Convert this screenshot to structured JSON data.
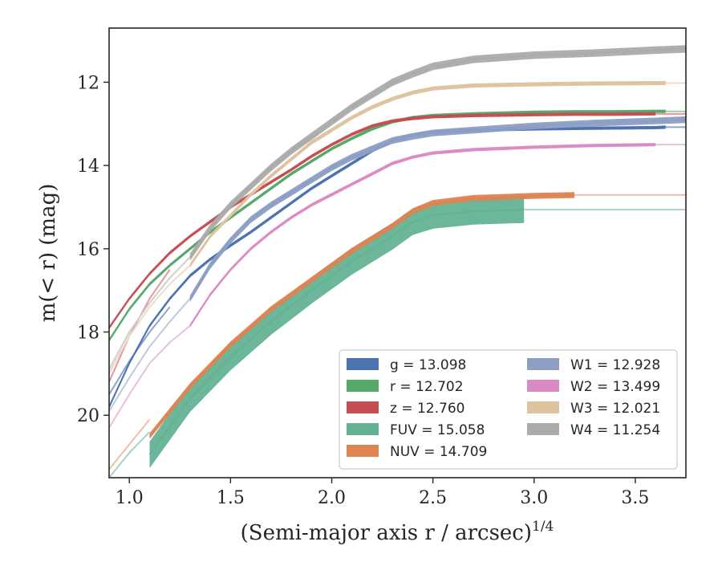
{
  "chart_data": {
    "type": "line",
    "title": "",
    "xlabel": "(Semi-major axis r / arcsec)",
    "xlabel_exponent": "1/4",
    "ylabel": "m(< r) (mag)",
    "xlim": [
      0.9,
      3.75
    ],
    "ylim": [
      21.5,
      10.7
    ],
    "y_inverted": true,
    "xticks": [
      "1.0",
      "1.5",
      "2.0",
      "2.5",
      "3.0",
      "3.5"
    ],
    "yticks": [
      "12",
      "14",
      "16",
      "18",
      "20"
    ],
    "grid": false,
    "legend_position": "lower-right",
    "legend_columns": 2,
    "series": [
      {
        "name": "g = 13.098",
        "color": "#4c72b0",
        "faded_color": "#8ea5c8",
        "x": [
          0.9,
          1.0,
          1.1,
          1.2,
          1.3,
          1.4,
          1.5,
          1.6,
          1.7,
          1.8,
          1.9,
          2.0,
          2.1,
          2.2,
          2.3,
          2.4,
          2.5,
          2.7,
          3.0,
          3.2,
          3.4,
          3.6,
          3.65
        ],
        "y": [
          19.8,
          18.75,
          17.85,
          17.2,
          16.65,
          16.25,
          15.92,
          15.6,
          15.25,
          14.9,
          14.55,
          14.25,
          13.95,
          13.65,
          13.4,
          13.27,
          13.2,
          13.15,
          13.12,
          13.11,
          13.1,
          13.09,
          13.08
        ],
        "band": 0.04,
        "fade_from": 3.65
      },
      {
        "name": "r = 12.702",
        "color": "#55a868",
        "faded_color": "#9dcfa6",
        "x": [
          0.9,
          1.0,
          1.1,
          1.2,
          1.3,
          1.4,
          1.5,
          1.6,
          1.7,
          1.8,
          1.9,
          2.0,
          2.1,
          2.2,
          2.3,
          2.4,
          2.5,
          2.7,
          3.0,
          3.2,
          3.4,
          3.6,
          3.65
        ],
        "y": [
          18.2,
          17.45,
          16.85,
          16.4,
          16.0,
          15.6,
          15.25,
          14.9,
          14.55,
          14.2,
          13.9,
          13.6,
          13.35,
          13.12,
          12.95,
          12.85,
          12.8,
          12.76,
          12.72,
          12.71,
          12.71,
          12.7,
          12.7
        ],
        "band": 0.04,
        "fade_from": 3.65
      },
      {
        "name": "z = 12.760",
        "color": "#c44e52",
        "faded_color": "#e39a9c",
        "x": [
          0.9,
          1.0,
          1.1,
          1.2,
          1.3,
          1.4,
          1.5,
          1.6,
          1.7,
          1.8,
          1.9,
          2.0,
          2.1,
          2.2,
          2.3,
          2.4,
          2.5,
          2.7,
          3.0,
          3.2,
          3.4,
          3.6
        ],
        "y": [
          17.9,
          17.2,
          16.6,
          16.1,
          15.7,
          15.35,
          15.0,
          14.7,
          14.4,
          14.1,
          13.78,
          13.5,
          13.25,
          13.05,
          12.93,
          12.87,
          12.83,
          12.8,
          12.78,
          12.77,
          12.77,
          12.76
        ],
        "band": 0.04,
        "fade_from": 3.6
      },
      {
        "name": "FUV = 15.058",
        "color": "#64b293",
        "faded_color": "#a8d3c2",
        "x": [
          1.1,
          1.3,
          1.5,
          1.7,
          1.9,
          2.1,
          2.3,
          2.4,
          2.5,
          2.7,
          2.95
        ],
        "y": [
          20.95,
          19.6,
          18.6,
          17.75,
          17.0,
          16.3,
          15.7,
          15.35,
          15.2,
          15.1,
          15.06
        ],
        "band": 0.32,
        "fade_from": 2.95
      },
      {
        "name": "NUV = 14.709",
        "color": "#dd8452",
        "faded_color": "#eebfa6",
        "x": [
          1.1,
          1.3,
          1.5,
          1.7,
          1.9,
          2.1,
          2.3,
          2.4,
          2.5,
          2.7,
          3.0,
          3.2
        ],
        "y": [
          20.5,
          19.3,
          18.3,
          17.45,
          16.75,
          16.05,
          15.45,
          15.1,
          14.9,
          14.78,
          14.73,
          14.71
        ],
        "band": 0.07,
        "fade_from": 3.2
      },
      {
        "name": "W1 = 12.928",
        "color": "#8c9ec4",
        "faded_color": "#bfc9de",
        "x": [
          1.3,
          1.4,
          1.5,
          1.6,
          1.7,
          1.8,
          1.9,
          2.0,
          2.1,
          2.2,
          2.3,
          2.4,
          2.5,
          2.7,
          3.0,
          3.3,
          3.6,
          3.75
        ],
        "y": [
          17.2,
          16.4,
          15.8,
          15.3,
          14.95,
          14.65,
          14.35,
          14.05,
          13.8,
          13.6,
          13.4,
          13.3,
          13.22,
          13.15,
          13.05,
          12.98,
          12.93,
          12.9
        ],
        "band": 0.08,
        "fade_from": 3.75
      },
      {
        "name": "W2 = 13.499",
        "color": "#da8bc3",
        "faded_color": "#ecc0dd",
        "x": [
          1.3,
          1.4,
          1.5,
          1.6,
          1.7,
          1.8,
          1.9,
          2.0,
          2.1,
          2.2,
          2.3,
          2.4,
          2.5,
          2.7,
          3.0,
          3.3,
          3.6
        ],
        "y": [
          17.85,
          17.1,
          16.5,
          16.0,
          15.6,
          15.25,
          14.95,
          14.7,
          14.45,
          14.2,
          13.95,
          13.8,
          13.7,
          13.62,
          13.56,
          13.52,
          13.5
        ],
        "band": 0.04,
        "fade_from": 3.6
      },
      {
        "name": "W3 = 12.021",
        "color": "#dfc29e",
        "faded_color": "#ecdcc7",
        "x": [
          1.3,
          1.4,
          1.5,
          1.6,
          1.7,
          1.8,
          1.9,
          2.0,
          2.1,
          2.2,
          2.3,
          2.4,
          2.5,
          2.7,
          3.0,
          3.3,
          3.65
        ],
        "y": [
          16.4,
          15.7,
          15.2,
          14.7,
          14.25,
          13.85,
          13.45,
          13.15,
          12.85,
          12.6,
          12.4,
          12.25,
          12.15,
          12.08,
          12.05,
          12.03,
          12.02
        ],
        "band": 0.05,
        "fade_from": 3.65
      },
      {
        "name": "W4 = 11.254",
        "color": "#ababab",
        "faded_color": "#cfcfcf",
        "x": [
          1.3,
          1.4,
          1.5,
          1.6,
          1.7,
          1.8,
          1.9,
          2.0,
          2.1,
          2.2,
          2.3,
          2.4,
          2.5,
          2.7,
          3.0,
          3.3,
          3.6,
          3.75
        ],
        "y": [
          16.2,
          15.5,
          14.95,
          14.5,
          14.05,
          13.65,
          13.3,
          12.95,
          12.6,
          12.3,
          12.0,
          11.8,
          11.62,
          11.45,
          11.35,
          11.3,
          11.23,
          11.2
        ],
        "band": 0.09,
        "fade_from": 3.75
      }
    ],
    "faded_extensions": [
      {
        "series": "g = 13.098",
        "color": "#8ea5c8",
        "x": [
          0.9,
          1.0,
          1.1,
          1.2
        ],
        "y": [
          19.5,
          18.7,
          18.0,
          17.4
        ]
      },
      {
        "series": "z = 12.760",
        "color": "#e39a9c",
        "x": [
          0.9,
          1.0,
          1.1,
          1.2
        ],
        "y": [
          19.2,
          18.1,
          17.2,
          16.5
        ]
      },
      {
        "series": "FUV = 15.058",
        "color": "#a8d3c2",
        "x": [
          0.9,
          1.0,
          1.1
        ],
        "y": [
          21.5,
          20.9,
          20.4
        ]
      },
      {
        "series": "NUV = 14.709",
        "color": "#eebfa6",
        "x": [
          0.9,
          1.0,
          1.1
        ],
        "y": [
          21.3,
          20.7,
          20.1
        ]
      },
      {
        "series": "W1 = 12.928",
        "color": "#bfc9de",
        "x": [
          0.9,
          1.0,
          1.1,
          1.2,
          1.3
        ],
        "y": [
          19.9,
          19.1,
          18.35,
          17.75,
          17.2
        ]
      },
      {
        "series": "W2 = 13.499",
        "color": "#ecc0dd",
        "x": [
          0.9,
          1.0,
          1.1,
          1.2,
          1.3
        ],
        "y": [
          20.3,
          19.5,
          18.75,
          18.25,
          17.85
        ]
      },
      {
        "series": "W3 = 12.021",
        "color": "#ecdcc7",
        "x": [
          0.9,
          1.0,
          1.1,
          1.2,
          1.3
        ],
        "y": [
          19.0,
          18.1,
          17.4,
          16.85,
          16.4
        ]
      },
      {
        "series": "W4 = 11.254",
        "color": "#cfcfcf",
        "x": [
          0.9,
          1.0,
          1.1,
          1.2,
          1.3
        ],
        "y": [
          18.9,
          18.0,
          17.3,
          16.7,
          16.2
        ]
      }
    ]
  }
}
